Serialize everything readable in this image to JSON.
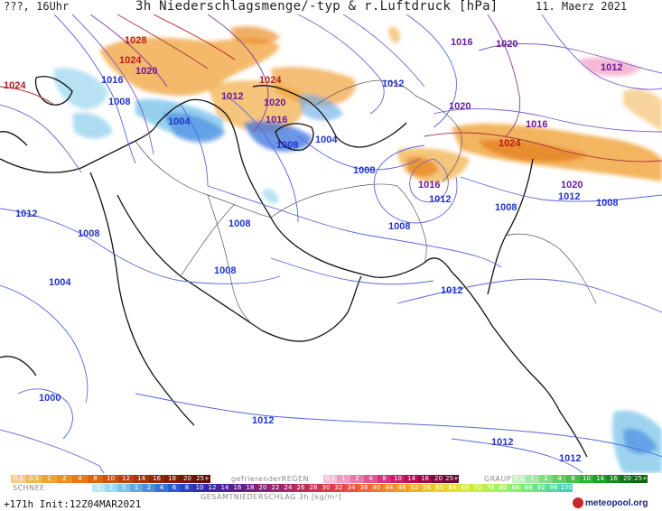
{
  "header": {
    "left": "???, 16Uhr",
    "title": "3h Niederschlagsmenge/-typ & r.Luftdruck [hPa]",
    "date": "11. Maerz 2021"
  },
  "isobar_labels": [
    {
      "text": "1028",
      "tone": "red"
    },
    {
      "text": "1024",
      "tone": "red"
    },
    {
      "text": "1024",
      "tone": "red"
    },
    {
      "text": "1020",
      "tone": "purple"
    },
    {
      "text": "1016",
      "tone": "blue"
    },
    {
      "text": "1008",
      "tone": "blue"
    },
    {
      "text": "1004",
      "tone": "blue"
    },
    {
      "text": "1012",
      "tone": "purple"
    },
    {
      "text": "1024",
      "tone": "red"
    },
    {
      "text": "1020",
      "tone": "purple"
    },
    {
      "text": "1016",
      "tone": "purple"
    },
    {
      "text": "1008",
      "tone": "blue"
    },
    {
      "text": "1004",
      "tone": "blue"
    },
    {
      "text": "1016",
      "tone": "purple"
    },
    {
      "text": "1020",
      "tone": "purple"
    },
    {
      "text": "1012",
      "tone": "purple"
    },
    {
      "text": "1012",
      "tone": "blue"
    },
    {
      "text": "1020",
      "tone": "purple"
    },
    {
      "text": "1016",
      "tone": "purple"
    },
    {
      "text": "1024",
      "tone": "red"
    },
    {
      "text": "1008",
      "tone": "blue"
    },
    {
      "text": "1016",
      "tone": "purple"
    },
    {
      "text": "1012",
      "tone": "blue"
    },
    {
      "text": "1020",
      "tone": "purple"
    },
    {
      "text": "1012",
      "tone": "blue"
    },
    {
      "text": "1008",
      "tone": "blue"
    },
    {
      "text": "1012",
      "tone": "blue"
    },
    {
      "text": "1008",
      "tone": "blue"
    },
    {
      "text": "1008",
      "tone": "blue"
    },
    {
      "text": "1004",
      "tone": "blue"
    },
    {
      "text": "1008",
      "tone": "blue"
    },
    {
      "text": "1008",
      "tone": "blue"
    },
    {
      "text": "1012",
      "tone": "blue"
    },
    {
      "text": "1008",
      "tone": "blue"
    },
    {
      "text": "1004",
      "tone": "blue"
    },
    {
      "text": "1000",
      "tone": "blue"
    },
    {
      "text": "1012",
      "tone": "blue"
    },
    {
      "text": "1012",
      "tone": "blue"
    },
    {
      "text": "1012",
      "tone": "blue"
    }
  ],
  "legend": {
    "snow": {
      "name": "SCHNEE",
      "values": [
        "0.1",
        "0.5",
        "1",
        "2",
        "4",
        "8",
        "10",
        "12",
        "14",
        "16",
        "18",
        "20",
        "25+"
      ]
    },
    "freezing_rain": {
      "name": "gefrierenderREGEN",
      "values": [
        "0.1",
        "1",
        "2",
        "4",
        "8",
        "10",
        "14",
        "16",
        "20",
        "25+"
      ]
    },
    "graupel": {
      "name": "GRAUPEL",
      "values": [
        "0.1",
        "1",
        "2",
        "4",
        "8",
        "10",
        "14",
        "16",
        "20",
        "25+"
      ]
    },
    "total": {
      "name": "GESAMTNIEDERSCHLAG 3h [kg/m²]",
      "values": [
        "1",
        "2",
        "5",
        "1",
        "2",
        "4",
        "6",
        "8",
        "10",
        "12",
        "14",
        "16",
        "18",
        "20",
        "22",
        "24",
        "26",
        "28",
        "30",
        "32",
        "34",
        "36",
        "40",
        "44",
        "48",
        "52",
        "56",
        "60",
        "64",
        "68",
        "72",
        "76",
        "80",
        "84",
        "88",
        "92",
        "96",
        "100"
      ]
    }
  },
  "footer": {
    "run": "+171h Init:12Z04MAR2021",
    "brand": "meteopool.org"
  },
  "colors": {
    "snow": [
      "#f7c98a",
      "#f3b75a",
      "#f0a23a",
      "#eb8f2a",
      "#e47a1d",
      "#d86612",
      "#c9540e",
      "#b8420b",
      "#a63408",
      "#952806",
      "#841d05",
      "#741404",
      "#650c03"
    ],
    "freezing_rain": [
      "#f7bdd6",
      "#f19bc0",
      "#ea79aa",
      "#e15594",
      "#d7347e",
      "#c81d6b",
      "#b2125a",
      "#9a0a4a",
      "#83063c",
      "#6c0330"
    ],
    "graupel": [
      "#c6f0c6",
      "#a6e6a6",
      "#84db84",
      "#63cf63",
      "#45c245",
      "#2eb32e",
      "#1e9f1e",
      "#138a13",
      "#0b760b",
      "#066306"
    ],
    "total": [
      "#bfe8f5",
      "#9dd8f0",
      "#7cc4ea",
      "#63a8e6",
      "#4c8de2",
      "#3a72dc",
      "#2e58d2",
      "#2a40c4",
      "#2e2fb3",
      "#3a26a6",
      "#4b229a",
      "#5e1f8e",
      "#722083",
      "#862279",
      "#9a2570",
      "#ac2867",
      "#bd2c5e",
      "#cc3256",
      "#d83a4d",
      "#e34545",
      "#ea533d",
      "#ef6436",
      "#f27630",
      "#f3892b",
      "#f39c28",
      "#f2ae27",
      "#efc028",
      "#ead12b",
      "#e2df31",
      "#d6e93a",
      "#c6ef45",
      "#b3f153",
      "#9ff162",
      "#8aee73",
      "#76e984",
      "#63e296",
      "#52d9a7",
      "#45ceb8"
    ]
  }
}
